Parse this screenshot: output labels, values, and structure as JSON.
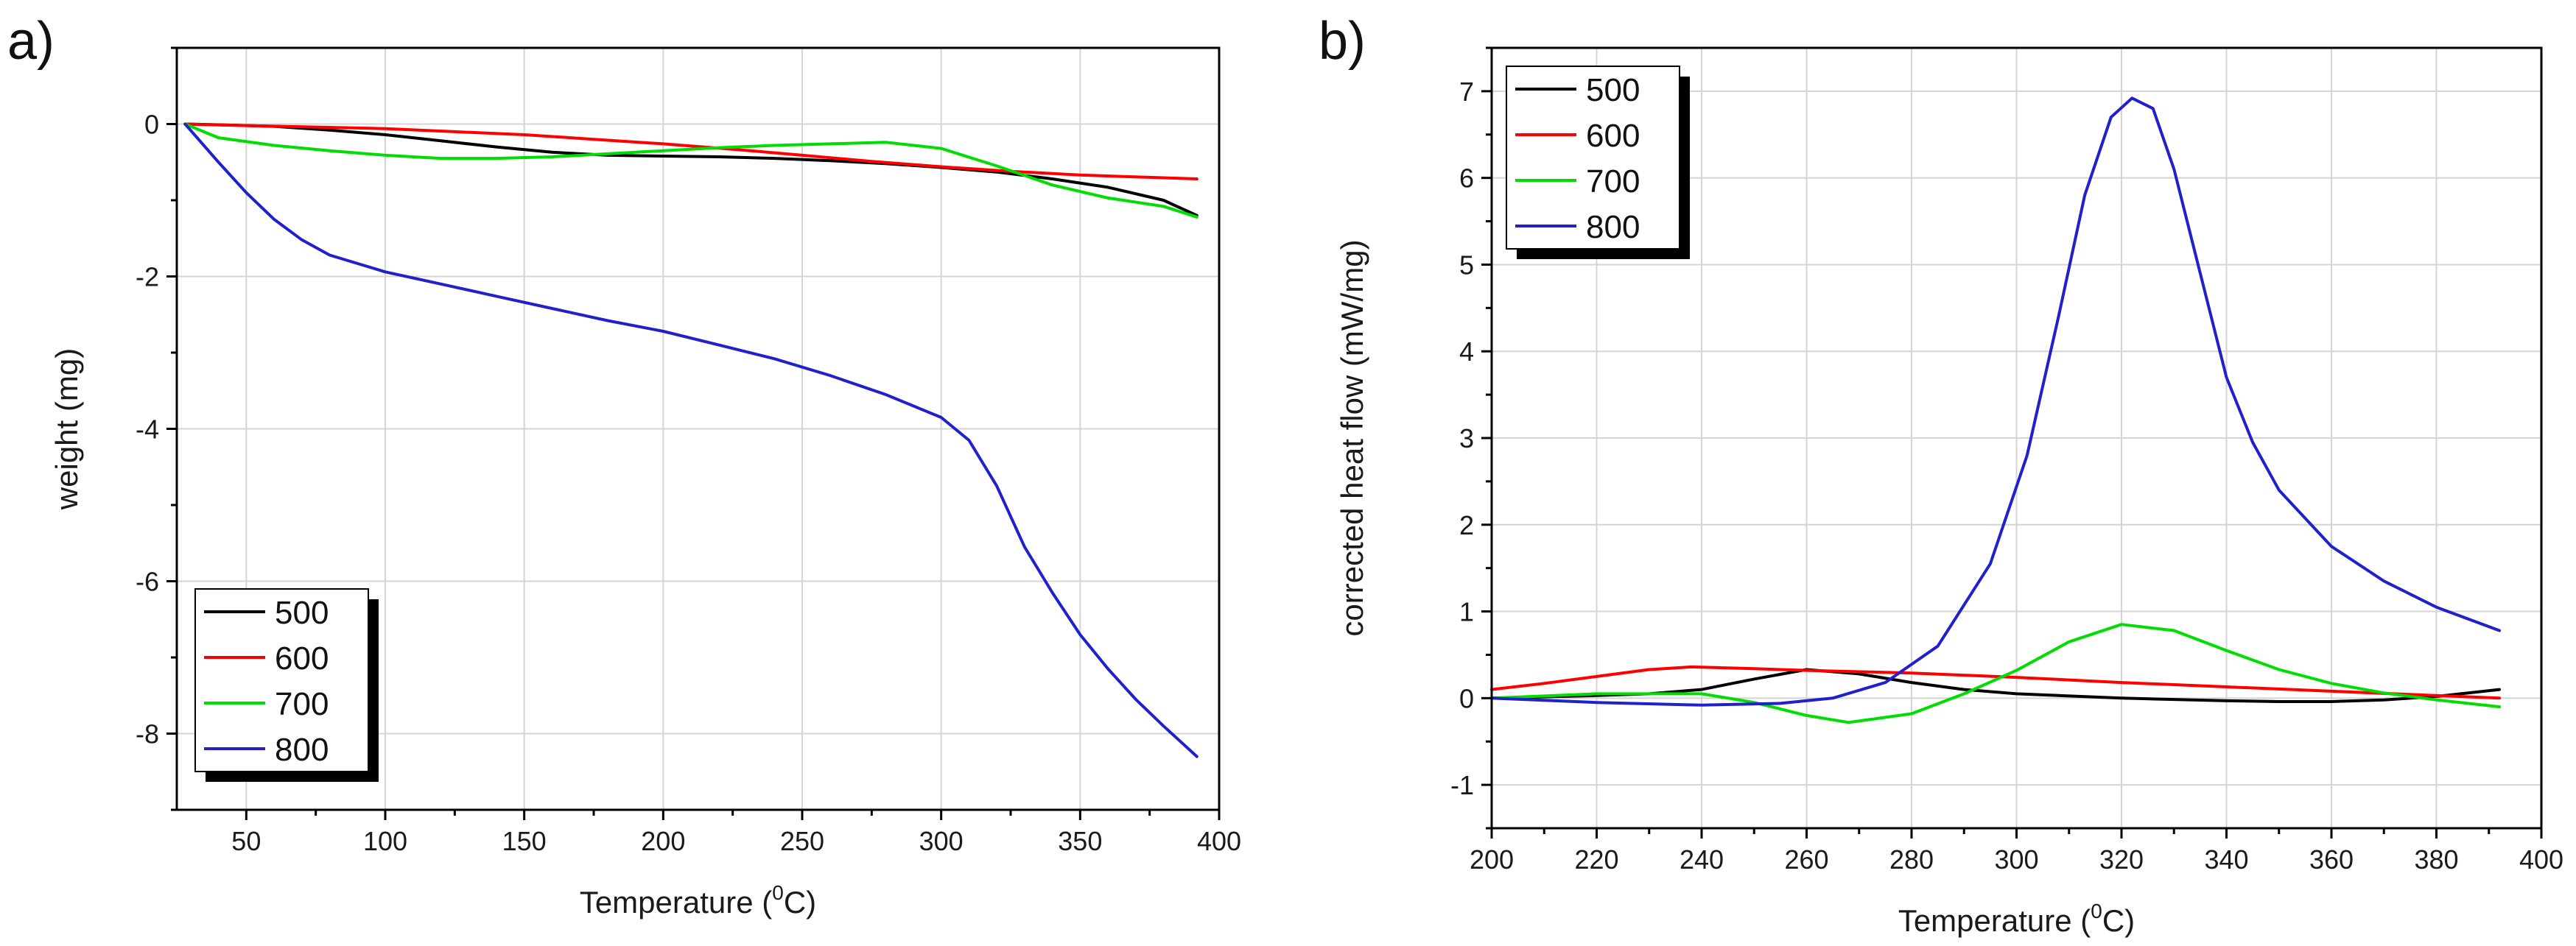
{
  "chart_data": [
    {
      "panel_label": "a)",
      "type": "line",
      "title": "",
      "xlabel": "Temperature (",
      "xlabel_sup": "0",
      "xlabel_end": "C)",
      "ylabel": "weight (mg)",
      "xlim": [
        25,
        400
      ],
      "ylim": [
        -9,
        1
      ],
      "xticks": [
        50,
        100,
        150,
        200,
        250,
        300,
        350,
        400
      ],
      "yticks": [
        0,
        -2,
        -4,
        -6,
        -8
      ],
      "minor_yticks": [
        1,
        -1,
        -3,
        -5,
        -7,
        -9
      ],
      "grid": true,
      "legend_position": "bottom-left",
      "series": [
        {
          "name": "500",
          "color": "#000000",
          "x": [
            28,
            40,
            60,
            80,
            100,
            120,
            140,
            160,
            180,
            200,
            220,
            240,
            260,
            280,
            300,
            320,
            340,
            360,
            380,
            392
          ],
          "y": [
            0,
            -0.01,
            -0.03,
            -0.08,
            -0.14,
            -0.22,
            -0.3,
            -0.37,
            -0.41,
            -0.42,
            -0.43,
            -0.45,
            -0.48,
            -0.52,
            -0.57,
            -0.63,
            -0.72,
            -0.83,
            -1.0,
            -1.2
          ]
        },
        {
          "name": "600",
          "color": "#ff0000",
          "x": [
            28,
            50,
            75,
            100,
            125,
            150,
            175,
            200,
            225,
            250,
            275,
            300,
            325,
            350,
            375,
            392
          ],
          "y": [
            0,
            -0.02,
            -0.04,
            -0.06,
            -0.1,
            -0.14,
            -0.2,
            -0.26,
            -0.33,
            -0.41,
            -0.49,
            -0.56,
            -0.62,
            -0.67,
            -0.7,
            -0.72
          ]
        },
        {
          "name": "700",
          "color": "#00dd00",
          "x": [
            28,
            40,
            60,
            80,
            100,
            120,
            140,
            160,
            180,
            200,
            220,
            240,
            260,
            280,
            300,
            320,
            340,
            360,
            380,
            392
          ],
          "y": [
            0,
            -0.18,
            -0.28,
            -0.35,
            -0.41,
            -0.45,
            -0.45,
            -0.43,
            -0.39,
            -0.35,
            -0.31,
            -0.28,
            -0.26,
            -0.24,
            -0.32,
            -0.55,
            -0.8,
            -0.97,
            -1.08,
            -1.22
          ]
        },
        {
          "name": "800",
          "color": "#2020cc",
          "x": [
            28,
            40,
            50,
            60,
            70,
            80,
            100,
            120,
            140,
            160,
            180,
            200,
            220,
            240,
            260,
            280,
            300,
            310,
            320,
            330,
            340,
            350,
            360,
            370,
            380,
            392
          ],
          "y": [
            0,
            -0.5,
            -0.9,
            -1.25,
            -1.52,
            -1.72,
            -1.94,
            -2.1,
            -2.26,
            -2.42,
            -2.58,
            -2.72,
            -2.9,
            -3.08,
            -3.3,
            -3.55,
            -3.85,
            -4.15,
            -4.75,
            -5.55,
            -6.15,
            -6.7,
            -7.15,
            -7.55,
            -7.9,
            -8.3
          ]
        }
      ]
    },
    {
      "panel_label": "b)",
      "type": "line",
      "title": "",
      "xlabel": "Temperature (",
      "xlabel_sup": "0",
      "xlabel_end": "C)",
      "ylabel": "corrected heat flow (mW/mg)",
      "xlim": [
        200,
        400
      ],
      "ylim": [
        -1.5,
        7.5
      ],
      "xticks": [
        200,
        220,
        240,
        260,
        280,
        300,
        320,
        340,
        360,
        380,
        400
      ],
      "yticks": [
        7,
        6,
        5,
        4,
        3,
        2,
        1,
        0,
        -1
      ],
      "minor_yticks": [
        7.5,
        6.5,
        5.5,
        4.5,
        3.5,
        2.5,
        1.5,
        0.5,
        -0.5,
        -1.5
      ],
      "grid": true,
      "legend_position": "top-left",
      "series": [
        {
          "name": "500",
          "color": "#000000",
          "x": [
            200,
            220,
            230,
            240,
            250,
            260,
            270,
            280,
            290,
            300,
            320,
            340,
            350,
            360,
            370,
            380,
            392
          ],
          "y": [
            0.0,
            0.03,
            0.05,
            0.1,
            0.22,
            0.33,
            0.28,
            0.18,
            0.1,
            0.05,
            0.0,
            -0.03,
            -0.04,
            -0.04,
            -0.02,
            0.02,
            0.1
          ]
        },
        {
          "name": "600",
          "color": "#ff0000",
          "x": [
            200,
            210,
            220,
            230,
            238,
            250,
            260,
            280,
            300,
            320,
            340,
            360,
            380,
            392
          ],
          "y": [
            0.1,
            0.17,
            0.25,
            0.33,
            0.36,
            0.34,
            0.32,
            0.29,
            0.24,
            0.18,
            0.13,
            0.08,
            0.03,
            0.0
          ]
        },
        {
          "name": "700",
          "color": "#00dd00",
          "x": [
            200,
            220,
            240,
            250,
            260,
            268,
            280,
            290,
            300,
            310,
            320,
            330,
            340,
            350,
            360,
            370,
            380,
            392
          ],
          "y": [
            0.0,
            0.05,
            0.05,
            -0.05,
            -0.2,
            -0.28,
            -0.18,
            0.05,
            0.32,
            0.65,
            0.85,
            0.78,
            0.55,
            0.33,
            0.17,
            0.06,
            -0.02,
            -0.1
          ]
        },
        {
          "name": "800",
          "color": "#2020cc",
          "x": [
            200,
            220,
            240,
            255,
            265,
            275,
            285,
            295,
            302,
            308,
            313,
            318,
            322,
            326,
            330,
            335,
            340,
            345,
            350,
            360,
            370,
            380,
            392
          ],
          "y": [
            0.0,
            -0.05,
            -0.08,
            -0.06,
            0.0,
            0.18,
            0.6,
            1.55,
            2.8,
            4.4,
            5.8,
            6.7,
            6.92,
            6.8,
            6.1,
            4.9,
            3.7,
            2.95,
            2.4,
            1.75,
            1.35,
            1.05,
            0.78
          ]
        }
      ]
    }
  ]
}
